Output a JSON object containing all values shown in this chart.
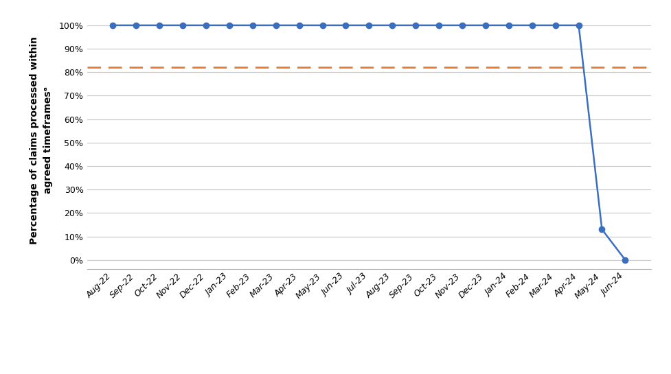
{
  "x_labels": [
    "Aug-22",
    "Sep-22",
    "Oct-22",
    "Nov-22",
    "Dec-22",
    "Jan-23",
    "Feb-23",
    "Mar-23",
    "Apr-23",
    "May-23",
    "Jun-23",
    "Jul-23",
    "Aug-23",
    "Sep-23",
    "Oct-23",
    "Nov-23",
    "Dec-23",
    "Jan-24",
    "Feb-24",
    "Mar-24",
    "Apr-24",
    "May-24",
    "Jun-24"
  ],
  "y_values": [
    100,
    100,
    100,
    100,
    100,
    100,
    100,
    100,
    100,
    100,
    100,
    100,
    100,
    100,
    100,
    100,
    100,
    100,
    100,
    100,
    100,
    13,
    0
  ],
  "target_value": 82,
  "reported_color": "#3C6EBF",
  "target_color": "#E87A30",
  "ylabel": "Percentage of claims processed within\nagreed timeframesᵃ",
  "ylim": [
    -4,
    106
  ],
  "yticks": [
    0,
    10,
    20,
    30,
    40,
    50,
    60,
    70,
    80,
    90,
    100
  ],
  "bg_color": "#ffffff",
  "grid_color": "#c8c8c8",
  "marker_size": 6,
  "line_width": 1.8,
  "target_linewidth": 2.0,
  "tick_fontsize": 9.0,
  "ylabel_fontsize": 10.0,
  "legend_fontsize": 10.0
}
